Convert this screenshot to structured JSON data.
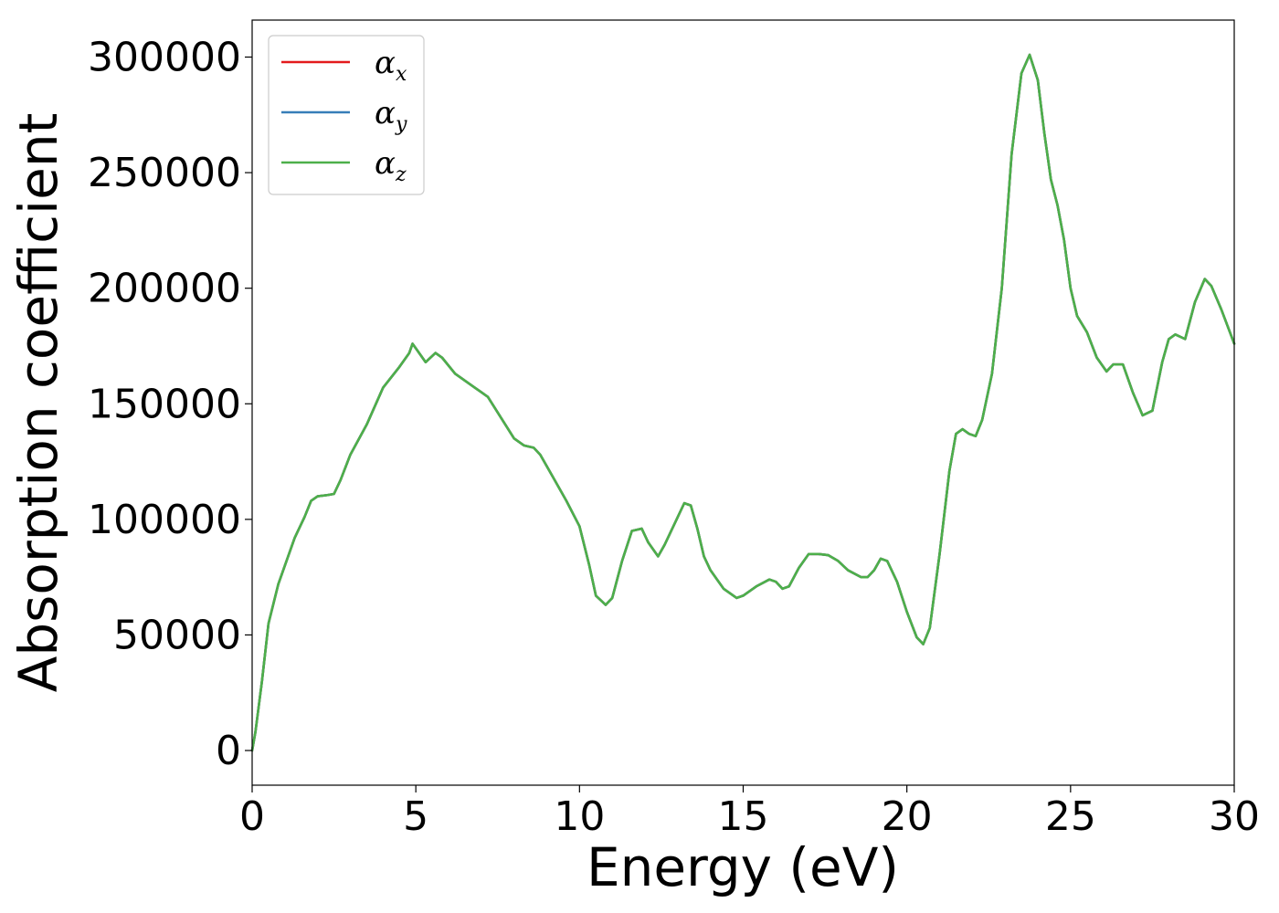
{
  "chart_data": {
    "type": "line",
    "xlabel": "Energy (eV)",
    "ylabel": "Absorption coefficient",
    "xlim": [
      0,
      30
    ],
    "ylim": [
      -15000,
      316000
    ],
    "xticks": [
      0,
      5,
      10,
      15,
      20,
      25,
      30
    ],
    "yticks": [
      0,
      50000,
      100000,
      150000,
      200000,
      250000,
      300000
    ],
    "grid": false,
    "legend_position": "top-left",
    "x": [
      0,
      0.1,
      0.3,
      0.5,
      0.8,
      1.0,
      1.3,
      1.6,
      1.8,
      2.0,
      2.3,
      2.5,
      2.7,
      3.0,
      3.5,
      4.0,
      4.5,
      4.8,
      4.9,
      5.0,
      5.3,
      5.6,
      5.8,
      6.2,
      6.5,
      6.8,
      7.0,
      7.2,
      7.6,
      8.0,
      8.3,
      8.6,
      8.8,
      9.2,
      9.6,
      10.0,
      10.3,
      10.5,
      10.8,
      11.0,
      11.3,
      11.6,
      11.9,
      12.1,
      12.4,
      12.6,
      12.9,
      13.2,
      13.4,
      13.6,
      13.8,
      14.0,
      14.4,
      14.8,
      15.0,
      15.4,
      15.8,
      16.0,
      16.2,
      16.4,
      16.7,
      17.0,
      17.3,
      17.6,
      17.9,
      18.2,
      18.6,
      18.8,
      19.0,
      19.2,
      19.4,
      19.7,
      20.0,
      20.3,
      20.5,
      20.7,
      21.0,
      21.3,
      21.5,
      21.7,
      21.9,
      22.1,
      22.3,
      22.6,
      22.9,
      23.2,
      23.5,
      23.75,
      24.0,
      24.2,
      24.4,
      24.6,
      24.8,
      25.0,
      25.2,
      25.5,
      25.8,
      26.1,
      26.3,
      26.6,
      26.9,
      27.2,
      27.5,
      27.8,
      28.0,
      28.2,
      28.5,
      28.8,
      29.1,
      29.3,
      29.6,
      30.0
    ],
    "series": [
      {
        "name": "αx",
        "color": "#e31a1c",
        "values": [
          0,
          8000,
          30000,
          55000,
          72000,
          80000,
          92000,
          101000,
          108000,
          110000,
          110500,
          111000,
          117000,
          128000,
          141000,
          157000,
          166000,
          172000,
          176000,
          174000,
          168000,
          172000,
          170000,
          163000,
          160000,
          157000,
          155000,
          153000,
          144000,
          135000,
          132000,
          131000,
          128000,
          118000,
          108000,
          97000,
          80000,
          67000,
          63000,
          66000,
          82000,
          95000,
          96000,
          90000,
          84000,
          89000,
          98000,
          107000,
          106000,
          96000,
          84000,
          78000,
          70000,
          66000,
          67000,
          71000,
          74000,
          73000,
          70000,
          71000,
          79000,
          85000,
          85000,
          84500,
          82000,
          78000,
          75000,
          75000,
          78000,
          83000,
          82000,
          73000,
          60000,
          49000,
          46000,
          53000,
          85000,
          121000,
          137000,
          139000,
          137000,
          136000,
          143000,
          163000,
          200000,
          258000,
          293000,
          301000,
          290000,
          267000,
          247000,
          236000,
          221000,
          200000,
          188000,
          181000,
          170000,
          164000,
          167000,
          167000,
          155000,
          145000,
          147000,
          168000,
          178000,
          180000,
          178000,
          194000,
          204000,
          201000,
          191000,
          176000
        ]
      },
      {
        "name": "αy",
        "color": "#377eb8",
        "values": [
          0,
          8000,
          30000,
          55000,
          72000,
          80000,
          92000,
          101000,
          108000,
          110000,
          110500,
          111000,
          117000,
          128000,
          141000,
          157000,
          166000,
          172000,
          176000,
          174000,
          168000,
          172000,
          170000,
          163000,
          160000,
          157000,
          155000,
          153000,
          144000,
          135000,
          132000,
          131000,
          128000,
          118000,
          108000,
          97000,
          80000,
          67000,
          63000,
          66000,
          82000,
          95000,
          96000,
          90000,
          84000,
          89000,
          98000,
          107000,
          106000,
          96000,
          84000,
          78000,
          70000,
          66000,
          67000,
          71000,
          74000,
          73000,
          70000,
          71000,
          79000,
          85000,
          85000,
          84500,
          82000,
          78000,
          75000,
          75000,
          78000,
          83000,
          82000,
          73000,
          60000,
          49000,
          46000,
          53000,
          85000,
          121000,
          137000,
          139000,
          137000,
          136000,
          143000,
          163000,
          200000,
          258000,
          293000,
          301000,
          290000,
          267000,
          247000,
          236000,
          221000,
          200000,
          188000,
          181000,
          170000,
          164000,
          167000,
          167000,
          155000,
          145000,
          147000,
          168000,
          178000,
          180000,
          178000,
          194000,
          204000,
          201000,
          191000,
          176000
        ]
      },
      {
        "name": "αz",
        "color": "#4daf4a",
        "values": [
          0,
          8000,
          30000,
          55000,
          72000,
          80000,
          92000,
          101000,
          108000,
          110000,
          110500,
          111000,
          117000,
          128000,
          141000,
          157000,
          166000,
          172000,
          176000,
          174000,
          168000,
          172000,
          170000,
          163000,
          160000,
          157000,
          155000,
          153000,
          144000,
          135000,
          132000,
          131000,
          128000,
          118000,
          108000,
          97000,
          80000,
          67000,
          63000,
          66000,
          82000,
          95000,
          96000,
          90000,
          84000,
          89000,
          98000,
          107000,
          106000,
          96000,
          84000,
          78000,
          70000,
          66000,
          67000,
          71000,
          74000,
          73000,
          70000,
          71000,
          79000,
          85000,
          85000,
          84500,
          82000,
          78000,
          75000,
          75000,
          78000,
          83000,
          82000,
          73000,
          60000,
          49000,
          46000,
          53000,
          85000,
          121000,
          137000,
          139000,
          137000,
          136000,
          143000,
          163000,
          200000,
          258000,
          293000,
          301000,
          290000,
          267000,
          247000,
          236000,
          221000,
          200000,
          188000,
          181000,
          170000,
          164000,
          167000,
          167000,
          155000,
          145000,
          147000,
          168000,
          178000,
          180000,
          178000,
          194000,
          204000,
          201000,
          191000,
          176000
        ]
      }
    ],
    "legend": [
      {
        "symbol": "α",
        "sub": "x"
      },
      {
        "symbol": "α",
        "sub": "y"
      },
      {
        "symbol": "α",
        "sub": "z"
      }
    ]
  }
}
